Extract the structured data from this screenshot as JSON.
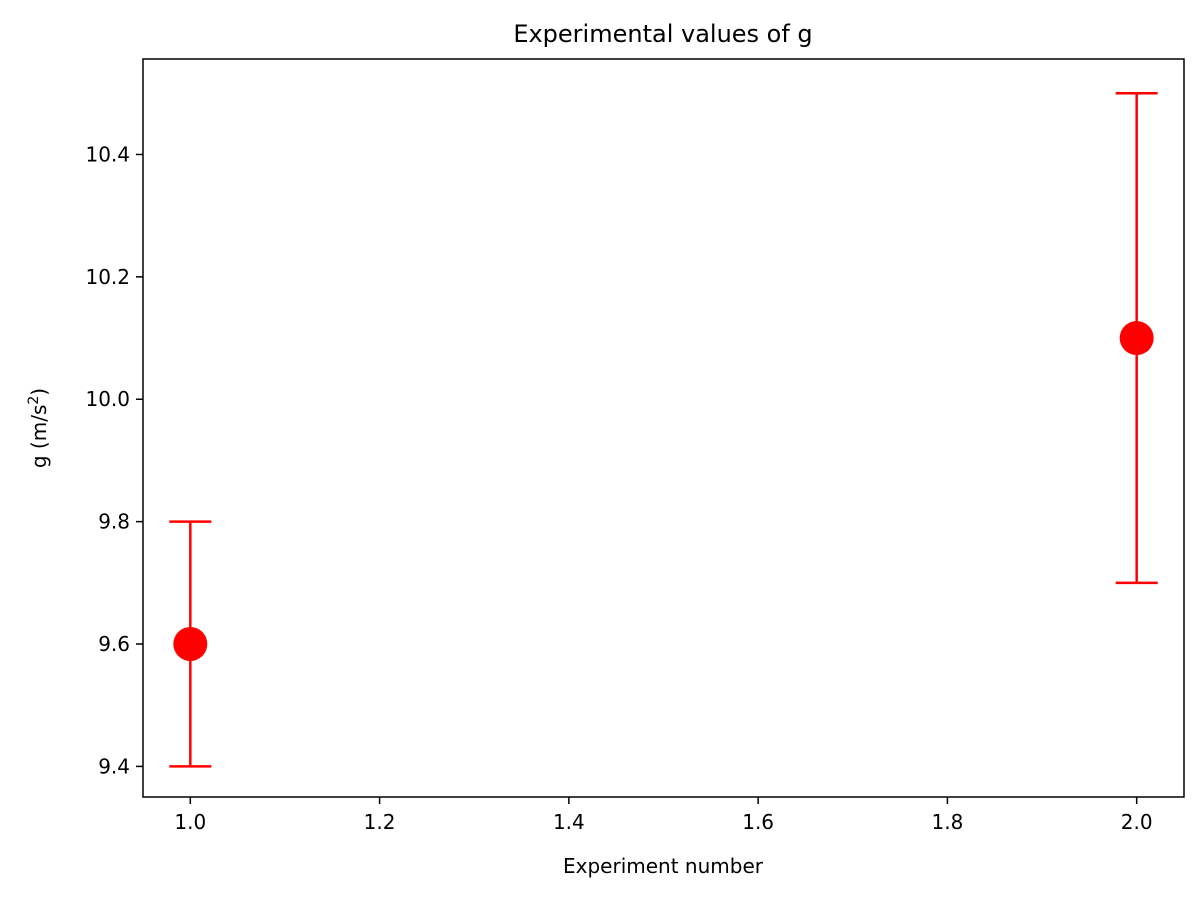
{
  "chart_data": {
    "type": "scatter",
    "title": "Experimental values of g",
    "xlabel": "Experiment number",
    "ylabel": {
      "prefix": "g (m/s",
      "superscript": "2",
      "suffix": ")"
    },
    "xlim": [
      0.95,
      2.05
    ],
    "ylim": [
      9.35,
      10.556
    ],
    "x_ticks": [
      1.0,
      1.2,
      1.4,
      1.6,
      1.8,
      2.0
    ],
    "x_tick_labels": [
      "1.0",
      "1.2",
      "1.4",
      "1.6",
      "1.8",
      "2.0"
    ],
    "y_ticks": [
      9.4,
      9.6,
      9.8,
      10.0,
      10.2,
      10.4
    ],
    "y_tick_labels": [
      "9.4",
      "9.6",
      "9.8",
      "10.0",
      "10.2",
      "10.4"
    ],
    "grid": false,
    "legend": false,
    "series": [
      {
        "color": "#ff0000",
        "points": [
          {
            "x": 1.0,
            "y": 9.6,
            "error": 0.2
          },
          {
            "x": 2.0,
            "y": 10.1,
            "error": 0.4
          }
        ]
      }
    ]
  }
}
